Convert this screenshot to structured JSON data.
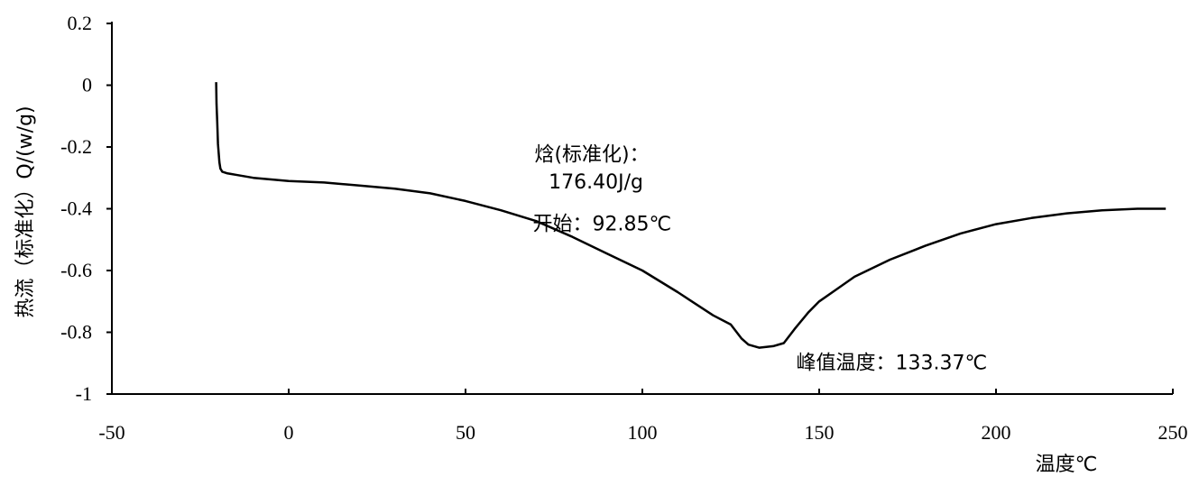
{
  "chart_data": {
    "type": "line",
    "title": "",
    "xlabel": "温度℃",
    "ylabel": "热流（标准化）Q/(w/g)",
    "xlim": [
      -50,
      250
    ],
    "ylim": [
      -1,
      0.2
    ],
    "x_ticks": [
      -50,
      0,
      50,
      100,
      150,
      200,
      250
    ],
    "x_tick_labels": [
      "-50",
      "0",
      "50",
      "100",
      "150",
      "200",
      "250"
    ],
    "y_ticks": [
      0.2,
      0,
      -0.2,
      -0.4,
      -0.6,
      -0.8,
      -1
    ],
    "y_tick_labels": [
      "0.2",
      "0",
      "-0.2",
      "-0.4",
      "-0.6",
      "-0.8",
      "-1"
    ],
    "grid": false,
    "legend": "none",
    "series": [
      {
        "color": "#000000",
        "x": [
          -20.5,
          -20.4,
          -20.2,
          -20.0,
          -19.8,
          -19.6,
          -19.3,
          -18.8,
          -17.5,
          -15,
          -10,
          -5,
          0,
          10,
          20,
          30,
          40,
          50,
          60,
          70,
          80,
          90,
          100,
          110,
          120,
          125,
          128,
          130,
          133,
          137,
          140,
          143,
          147,
          150,
          155,
          160,
          170,
          180,
          190,
          200,
          210,
          220,
          230,
          240,
          248
        ],
        "y": [
          0.01,
          -0.06,
          -0.12,
          -0.19,
          -0.22,
          -0.25,
          -0.27,
          -0.28,
          -0.285,
          -0.29,
          -0.3,
          -0.305,
          -0.31,
          -0.315,
          -0.325,
          -0.335,
          -0.35,
          -0.375,
          -0.405,
          -0.44,
          -0.49,
          -0.545,
          -0.6,
          -0.67,
          -0.745,
          -0.775,
          -0.82,
          -0.84,
          -0.85,
          -0.845,
          -0.835,
          -0.79,
          -0.735,
          -0.7,
          -0.66,
          -0.62,
          -0.565,
          -0.52,
          -0.48,
          -0.45,
          -0.43,
          -0.415,
          -0.405,
          -0.4,
          -0.4
        ]
      }
    ],
    "annotations": [
      {
        "id": "enthalpy-label",
        "text": "焓(标准化)：",
        "x": 69.5,
        "y": -0.245
      },
      {
        "id": "enthalpy-value",
        "text": "176.40J/g",
        "x": 73.5,
        "y": -0.335
      },
      {
        "id": "onset",
        "text": "开始：92.85℃",
        "x": 69,
        "y": -0.47
      },
      {
        "id": "peak",
        "text": "峰值温度：133.37℃",
        "x": 143.5,
        "y": -0.92
      }
    ]
  }
}
